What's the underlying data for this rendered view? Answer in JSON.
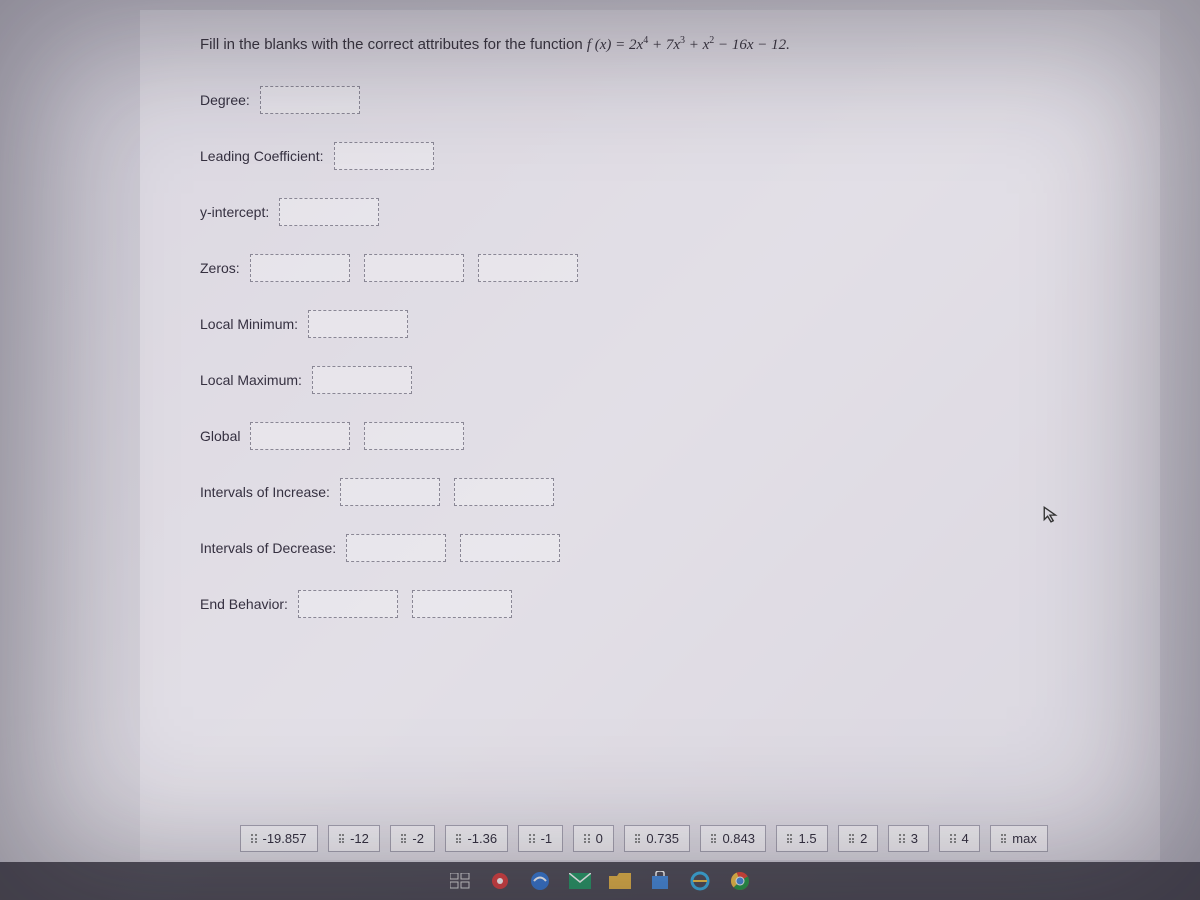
{
  "instruction_prefix": "Fill in the blanks with the correct attributes for the function ",
  "function_lhs": "f (x) = ",
  "function_rhs_display": "2x⁴ + 7x³ + x² − 16x − 12.",
  "fields": {
    "degree": {
      "label": "Degree:",
      "zones": 1,
      "zone_width": "w100"
    },
    "leading_coef": {
      "label": "Leading Coefficient:",
      "zones": 1,
      "zone_width": "w100"
    },
    "y_intercept": {
      "label": "y-intercept:",
      "zones": 1,
      "zone_width": "w100"
    },
    "zeros": {
      "label": "Zeros:",
      "zones": 3,
      "zone_width": "w100"
    },
    "local_min": {
      "label": "Local Minimum:",
      "zones": 1,
      "zone_width": "w100"
    },
    "local_max": {
      "label": "Local Maximum:",
      "zones": 1,
      "zone_width": "w100"
    },
    "global": {
      "label": "Global",
      "zones": 2,
      "zone_width": "w100"
    },
    "intervals_inc": {
      "label": "Intervals of Increase:",
      "zones": 2,
      "zone_width": "w100"
    },
    "intervals_dec": {
      "label": "Intervals of Decrease:",
      "zones": 2,
      "zone_width": "w100"
    },
    "end_behavior": {
      "label": "End Behavior:",
      "zones": 2,
      "zone_width": "w100"
    }
  },
  "answer_bank": [
    "-19.857",
    "-12",
    "-2",
    "-1.36",
    "-1",
    "0",
    "0.735",
    "0.843",
    "1.5",
    "2",
    "3",
    "4",
    "max"
  ],
  "colors": {
    "bg_tint": "#c8c5d0",
    "panel_bg": "rgba(235,232,238,0.55)",
    "text": "#353040",
    "drop_border": "#8a8795",
    "chip_border": "#a5a2b0"
  },
  "taskbar_icons": [
    {
      "name": "task-view-icon",
      "color": "#e0e0e0"
    },
    {
      "name": "settings-icon",
      "color": "#d44"
    },
    {
      "name": "browser-icon",
      "color": "#3a7bd5"
    },
    {
      "name": "mail-icon",
      "color": "#2a6"
    },
    {
      "name": "files-icon",
      "color": "#e8b84a"
    },
    {
      "name": "store-icon",
      "color": "#4a90e2"
    },
    {
      "name": "ie-icon",
      "color": "#3fb4e8"
    },
    {
      "name": "chrome-icon",
      "color": "#e8e8e8"
    }
  ]
}
